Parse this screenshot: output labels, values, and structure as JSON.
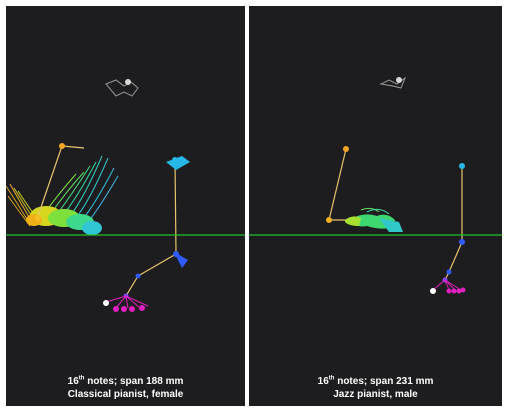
{
  "panels": [
    {
      "caption_superscript": "th",
      "caption_rest": " notes;  span 188 mm",
      "caption_num": "16",
      "caption_line2": "Classical pianist, female"
    },
    {
      "caption_superscript": "th",
      "caption_rest": " notes;  span 231 mm",
      "caption_num": "16",
      "caption_line2": "Jazz pianist, male"
    }
  ],
  "colors": {
    "background": "#1d1d1f",
    "horizon": "#22c32a",
    "bone": "#e8c46a",
    "joint_orange": "#f5a623",
    "joint_blue": "#2f5bff",
    "joint_cyan": "#27b8e8",
    "joint_magenta": "#e020c0",
    "joint_white": "#ffffff"
  }
}
